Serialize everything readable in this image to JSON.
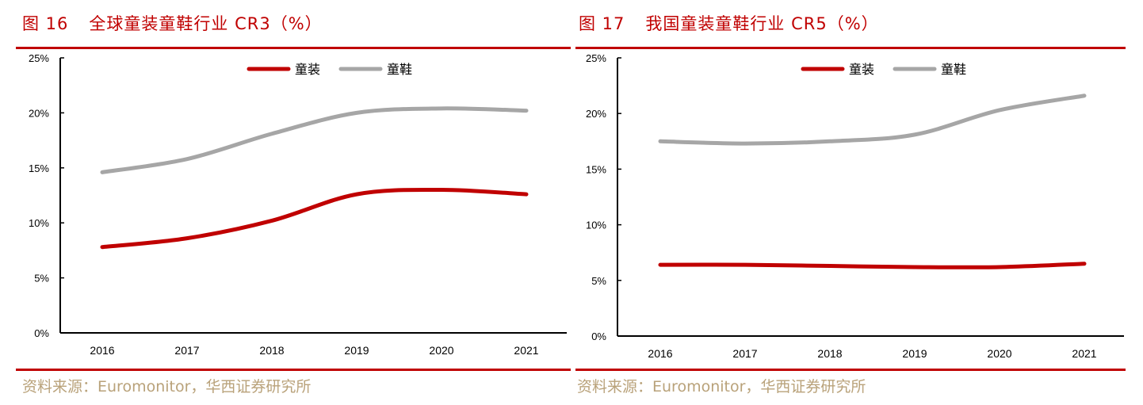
{
  "source_label": "资料来源：Euromonitor，华西证券研究所",
  "colors": {
    "accent": "#c00000",
    "series_red": "#c00000",
    "series_gray": "#a6a6a6",
    "source": "#b9a27a"
  },
  "chart_data": [
    {
      "type": "line",
      "fig_no": "图 16",
      "title": "全球童装童鞋行业 CR3（%）",
      "xlabel": "",
      "ylabel": "",
      "categories": [
        "2016",
        "2017",
        "2018",
        "2019",
        "2020",
        "2021"
      ],
      "ylim": [
        0,
        25
      ],
      "yticks": [
        "0%",
        "5%",
        "10%",
        "15%",
        "20%",
        "25%"
      ],
      "legend_position": "top-center",
      "grid": false,
      "series": [
        {
          "name": "童装",
          "color": "#c00000",
          "values": [
            7.8,
            8.6,
            10.2,
            12.6,
            13.0,
            12.6
          ]
        },
        {
          "name": "童鞋",
          "color": "#a6a6a6",
          "values": [
            14.6,
            15.8,
            18.1,
            20.0,
            20.4,
            20.2
          ]
        }
      ]
    },
    {
      "type": "line",
      "fig_no": "图 17",
      "title": "我国童装童鞋行业 CR5（%）",
      "xlabel": "",
      "ylabel": "",
      "categories": [
        "2016",
        "2017",
        "2018",
        "2019",
        "2020",
        "2021"
      ],
      "ylim": [
        0,
        25
      ],
      "yticks": [
        "0%",
        "5%",
        "10%",
        "15%",
        "20%",
        "25%"
      ],
      "legend_position": "top-center",
      "grid": false,
      "series": [
        {
          "name": "童装",
          "color": "#c00000",
          "values": [
            6.4,
            6.4,
            6.3,
            6.2,
            6.2,
            6.5
          ]
        },
        {
          "name": "童鞋",
          "color": "#a6a6a6",
          "values": [
            17.5,
            17.3,
            17.5,
            18.1,
            20.3,
            21.6
          ]
        }
      ]
    }
  ]
}
